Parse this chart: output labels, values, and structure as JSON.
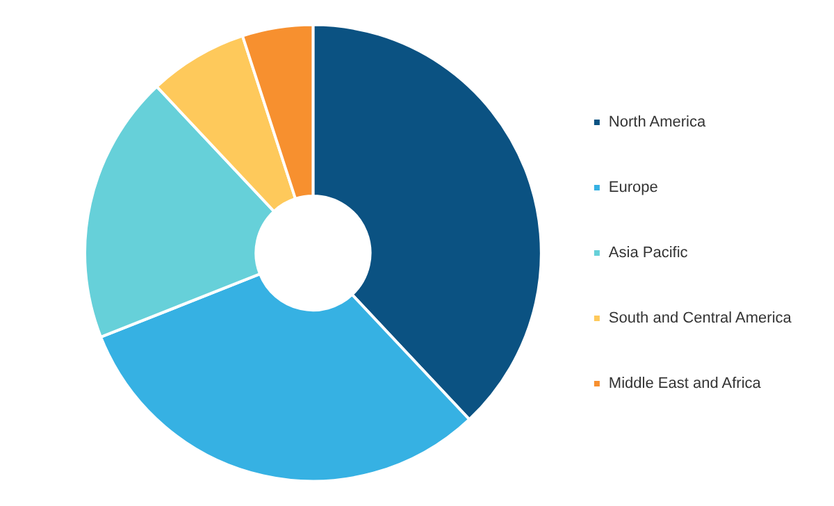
{
  "chart_data": {
    "type": "donut",
    "categories": [
      "North America",
      "Europe",
      "Asia Pacific",
      "South and Central America",
      "Middle East and Africa"
    ],
    "values": [
      38,
      31,
      19,
      7,
      5
    ],
    "colors": [
      "#0b5282",
      "#36b1e3",
      "#66d0d9",
      "#fec95b",
      "#f7902f"
    ],
    "legend": "right"
  }
}
